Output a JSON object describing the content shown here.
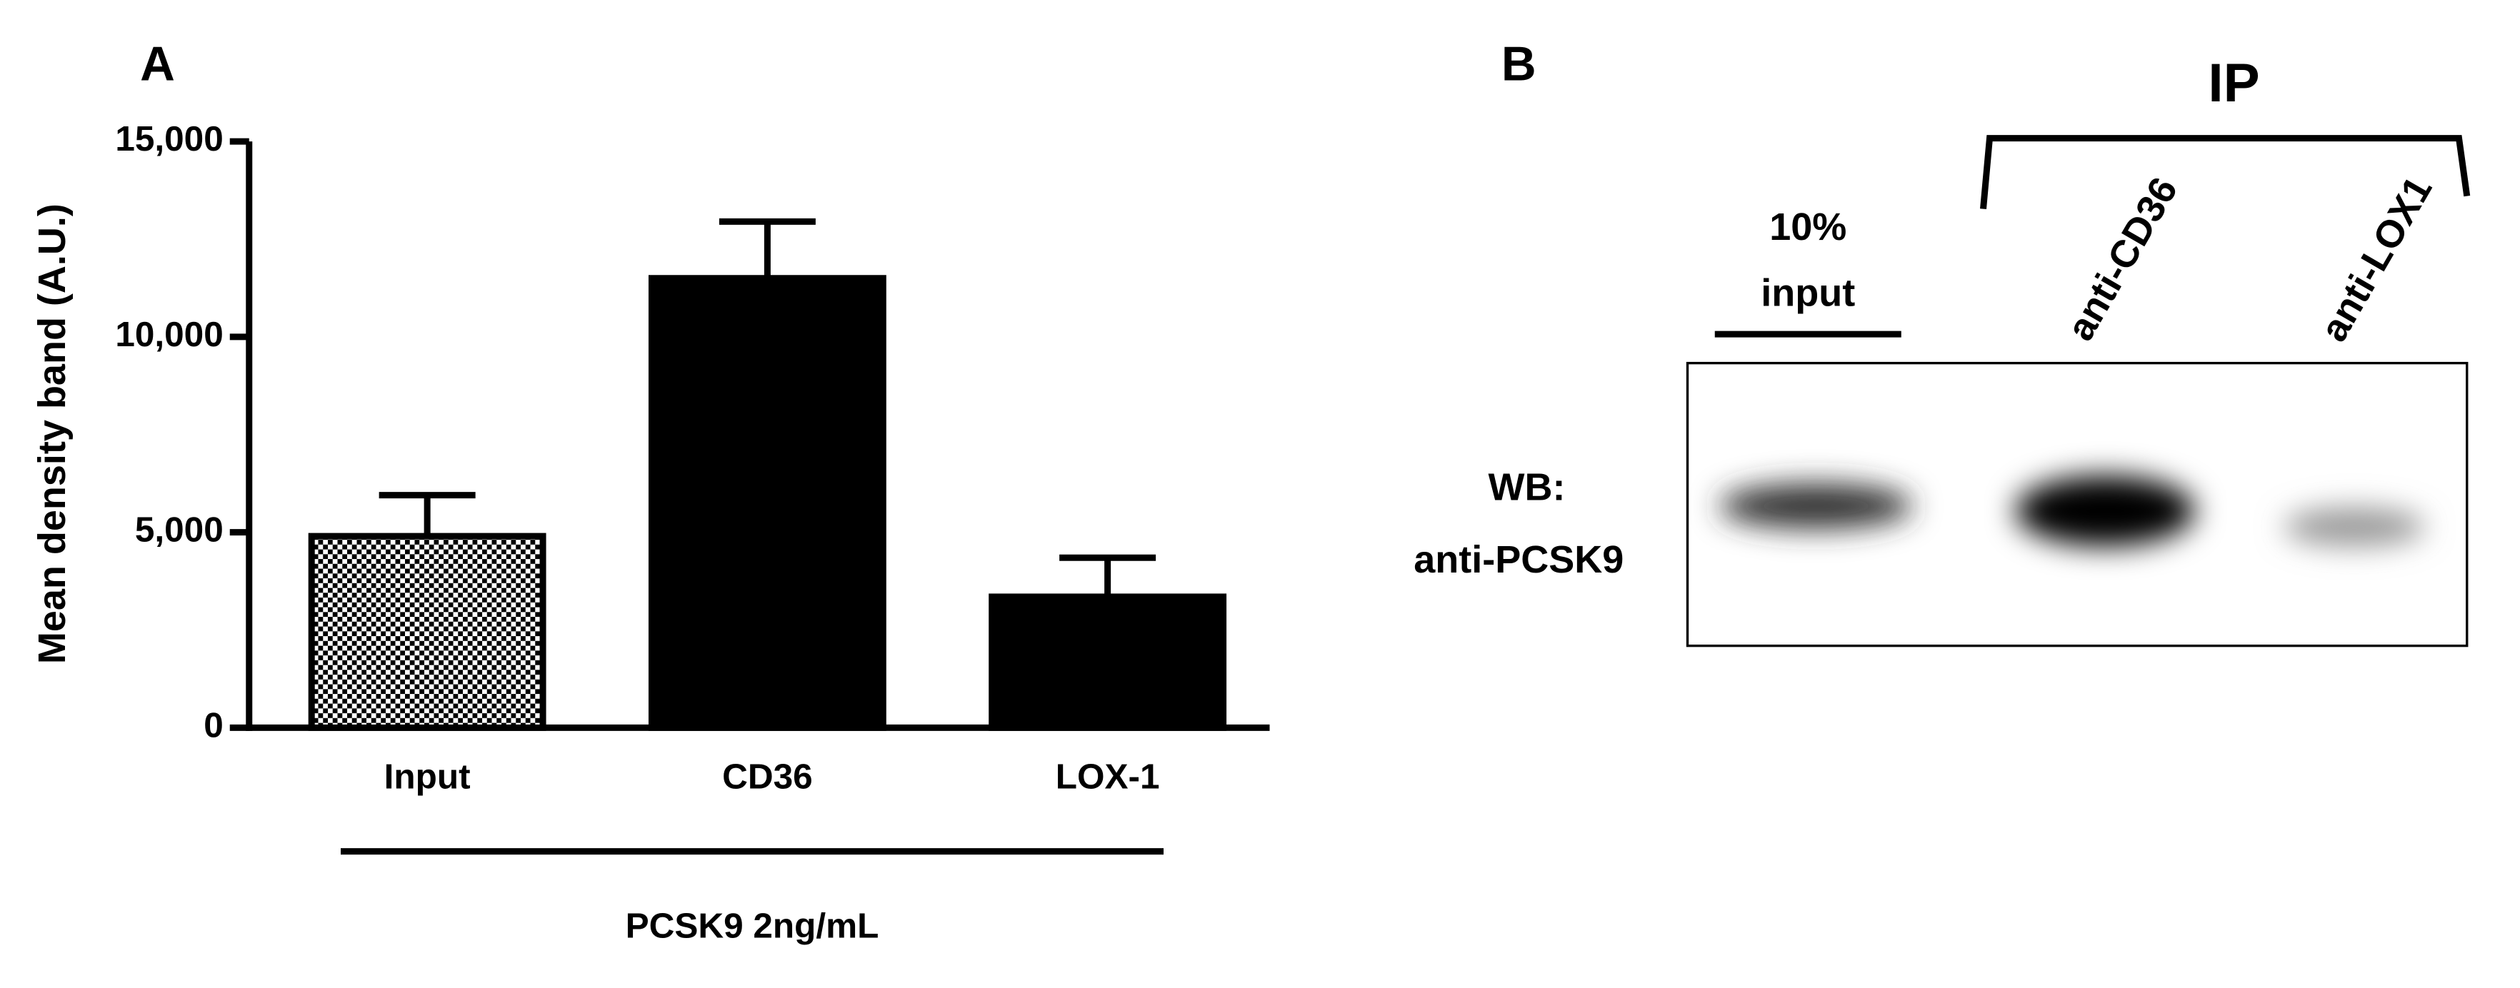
{
  "chart_data": {
    "type": "bar",
    "y_label": "Mean density band (A.U.)",
    "x_group_label": "PCSK9 2ng/mL",
    "categories": [
      "Input",
      "CD36",
      "LOX-1"
    ],
    "values": [
      4900,
      11500,
      3350
    ],
    "errors": [
      1050,
      1450,
      1000
    ],
    "color": "#000000",
    "patterns": [
      "checker",
      "solid",
      "solid"
    ],
    "ylim": [
      0,
      15000
    ],
    "yticks": [
      0,
      {
        "value": 5000,
        "label": "5,000"
      },
      {
        "value": 10000,
        "label": "10,000"
      },
      {
        "value": 15000,
        "label": "15,000"
      }
    ]
  },
  "panel_labels": [
    "A",
    "B"
  ],
  "blot": {
    "group_label": "IP",
    "input_label": [
      "10%",
      "input"
    ],
    "lane_labels": [
      "anti-CD36",
      "anti-LOX1"
    ],
    "row_label": [
      "WB:",
      "anti-PCSK9"
    ]
  }
}
